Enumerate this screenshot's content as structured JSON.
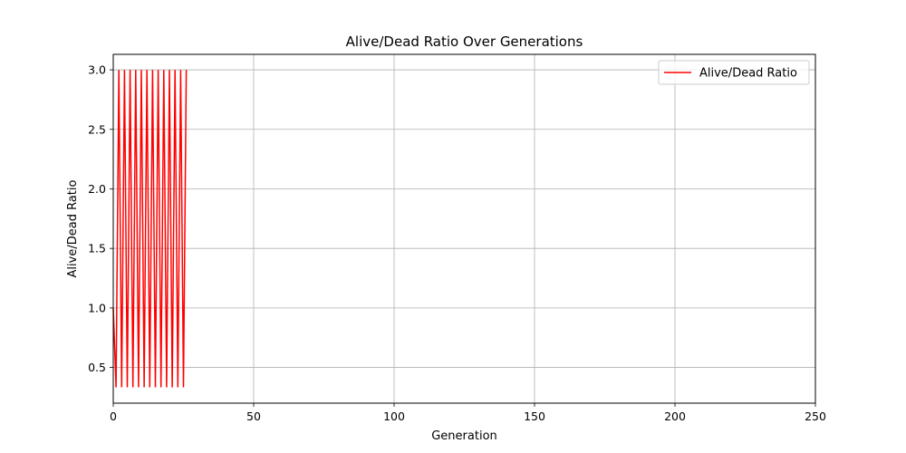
{
  "chart_data": {
    "type": "line",
    "title": "Alive/Dead Ratio Over Generations",
    "xlabel": "Generation",
    "ylabel": "Alive/Dead Ratio",
    "xlim": [
      0,
      250
    ],
    "ylim": [
      0.2,
      3.13
    ],
    "xticks": [
      0,
      50,
      100,
      150,
      200,
      250
    ],
    "yticks": [
      0.5,
      1.0,
      1.5,
      2.0,
      2.5,
      3.0
    ],
    "xtick_labels": [
      "0",
      "50",
      "100",
      "150",
      "200",
      "250"
    ],
    "ytick_labels": [
      "0.5",
      "1.0",
      "1.5",
      "2.0",
      "2.5",
      "3.0"
    ],
    "grid": true,
    "legend_position": "top-right",
    "series": [
      {
        "name": "Alive/Dead Ratio",
        "color": "#ff0000",
        "x": [
          0,
          1,
          2,
          3,
          4,
          5,
          6,
          7,
          8,
          9,
          10,
          11,
          12,
          13,
          14,
          15,
          16,
          17,
          18,
          19,
          20,
          21,
          22,
          23,
          24,
          25,
          26
        ],
        "y": [
          1.0,
          0.333,
          3.0,
          0.333,
          3.0,
          0.333,
          3.0,
          0.333,
          3.0,
          0.333,
          3.0,
          0.333,
          3.0,
          0.333,
          3.0,
          0.333,
          3.0,
          0.333,
          3.0,
          0.333,
          3.0,
          0.333,
          3.0,
          0.333,
          3.0,
          0.333,
          3.0
        ]
      }
    ]
  }
}
